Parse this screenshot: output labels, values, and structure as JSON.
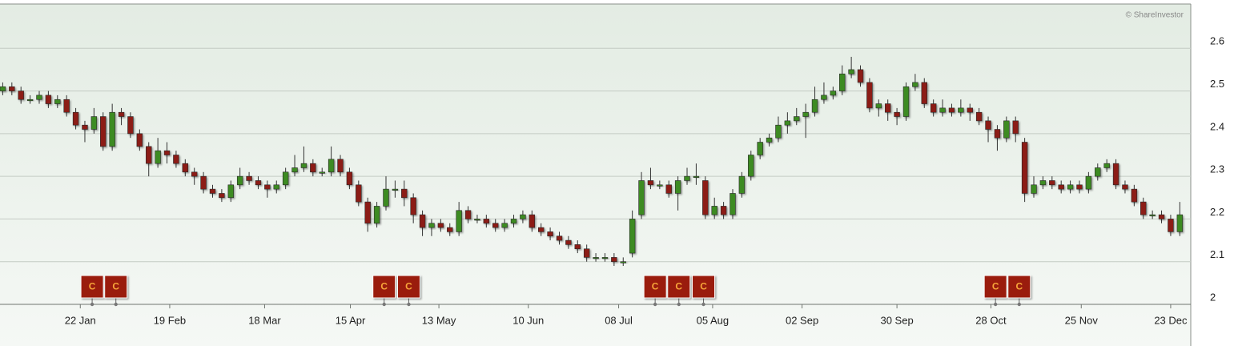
{
  "chart_data": {
    "type": "candlestick",
    "credit": "© ShareInvestor",
    "up_color": "#3d8b22",
    "down_color": "#8c1c16",
    "grid": true,
    "xlim": [
      -0.3,
      130.2
    ],
    "ylim": [
      2,
      2.7
    ],
    "yticks": [
      2,
      2.1,
      2.2,
      2.3,
      2.4,
      2.5,
      2.6
    ],
    "xticks": [
      {
        "value": 8.5,
        "label": "22 Jan"
      },
      {
        "value": 18.3,
        "label": "19 Feb"
      },
      {
        "value": 28.7,
        "label": "18 Mar"
      },
      {
        "value": 38.1,
        "label": "15 Apr"
      },
      {
        "value": 47.8,
        "label": "13 May"
      },
      {
        "value": 57.6,
        "label": "10 Jun"
      },
      {
        "value": 67.5,
        "label": "08 Jul"
      },
      {
        "value": 77.8,
        "label": "05 Aug"
      },
      {
        "value": 87.6,
        "label": "02 Sep"
      },
      {
        "value": 98,
        "label": "30 Sep"
      },
      {
        "value": 108.3,
        "label": "28 Oct"
      },
      {
        "value": 118.2,
        "label": "25 Nov"
      },
      {
        "value": 128,
        "label": "23 Dec"
      }
    ],
    "open": [
      2.5,
      2.51,
      2.5,
      2.48,
      2.48,
      2.49,
      2.47,
      2.48,
      2.45,
      2.42,
      2.41,
      2.44,
      2.37,
      2.45,
      2.44,
      2.4,
      2.37,
      2.33,
      2.36,
      2.35,
      2.33,
      2.31,
      2.3,
      2.27,
      2.26,
      2.25,
      2.28,
      2.3,
      2.29,
      2.28,
      2.27,
      2.28,
      2.31,
      2.32,
      2.33,
      2.31,
      2.31,
      2.34,
      2.31,
      2.28,
      2.24,
      2.19,
      2.23,
      2.27,
      2.27,
      2.25,
      2.21,
      2.18,
      2.19,
      2.18,
      2.17,
      2.22,
      2.2,
      2.2,
      2.19,
      2.18,
      2.19,
      2.2,
      2.21,
      2.18,
      2.17,
      2.16,
      2.15,
      2.14,
      2.13,
      2.11,
      2.11,
      2.11,
      2.1,
      2.12,
      2.21,
      2.29,
      2.28,
      2.28,
      2.26,
      2.29,
      2.3,
      2.29,
      2.21,
      2.23,
      2.21,
      2.26,
      2.3,
      2.35,
      2.38,
      2.39,
      2.42,
      2.43,
      2.44,
      2.45,
      2.48,
      2.49,
      2.5,
      2.54,
      2.55,
      2.52,
      2.46,
      2.47,
      2.45,
      2.44,
      2.51,
      2.52,
      2.47,
      2.45,
      2.46,
      2.45,
      2.46,
      2.45,
      2.43,
      2.41,
      2.39,
      2.43,
      2.38,
      2.26,
      2.28,
      2.29,
      2.28,
      2.27,
      2.28,
      2.27,
      2.3,
      2.32,
      2.33,
      2.28,
      2.27,
      2.24,
      2.21,
      2.21,
      2.2,
      2.17
    ],
    "high": [
      2.52,
      2.52,
      2.51,
      2.49,
      2.5,
      2.5,
      2.49,
      2.49,
      2.46,
      2.43,
      2.46,
      2.45,
      2.47,
      2.46,
      2.45,
      2.41,
      2.38,
      2.39,
      2.38,
      2.36,
      2.34,
      2.32,
      2.31,
      2.28,
      2.27,
      2.29,
      2.32,
      2.31,
      2.3,
      2.29,
      2.29,
      2.32,
      2.35,
      2.37,
      2.34,
      2.32,
      2.37,
      2.35,
      2.32,
      2.29,
      2.25,
      2.24,
      2.3,
      2.29,
      2.29,
      2.26,
      2.22,
      2.2,
      2.2,
      2.19,
      2.24,
      2.23,
      2.21,
      2.21,
      2.2,
      2.2,
      2.21,
      2.22,
      2.22,
      2.19,
      2.18,
      2.17,
      2.16,
      2.15,
      2.14,
      2.12,
      2.12,
      2.12,
      2.11,
      2.22,
      2.31,
      2.32,
      2.29,
      2.29,
      2.3,
      2.32,
      2.33,
      2.3,
      2.25,
      2.24,
      2.27,
      2.31,
      2.36,
      2.39,
      2.4,
      2.44,
      2.45,
      2.46,
      2.47,
      2.51,
      2.52,
      2.51,
      2.56,
      2.58,
      2.56,
      2.53,
      2.48,
      2.48,
      2.46,
      2.52,
      2.54,
      2.53,
      2.48,
      2.48,
      2.47,
      2.48,
      2.47,
      2.46,
      2.44,
      2.42,
      2.44,
      2.44,
      2.39,
      2.3,
      2.3,
      2.3,
      2.29,
      2.29,
      2.29,
      2.31,
      2.33,
      2.34,
      2.34,
      2.29,
      2.28,
      2.25,
      2.22,
      2.22,
      2.21,
      2.24
    ],
    "low": [
      2.49,
      2.49,
      2.47,
      2.47,
      2.47,
      2.46,
      2.46,
      2.44,
      2.41,
      2.38,
      2.4,
      2.36,
      2.36,
      2.42,
      2.39,
      2.36,
      2.3,
      2.32,
      2.33,
      2.32,
      2.3,
      2.28,
      2.26,
      2.25,
      2.24,
      2.24,
      2.27,
      2.28,
      2.27,
      2.25,
      2.26,
      2.27,
      2.3,
      2.31,
      2.3,
      2.3,
      2.3,
      2.3,
      2.27,
      2.23,
      2.17,
      2.18,
      2.22,
      2.25,
      2.23,
      2.19,
      2.16,
      2.16,
      2.17,
      2.16,
      2.16,
      2.19,
      2.19,
      2.18,
      2.17,
      2.17,
      2.18,
      2.19,
      2.17,
      2.16,
      2.15,
      2.14,
      2.13,
      2.12,
      2.1,
      2.1,
      2.1,
      2.09,
      2.09,
      2.11,
      2.2,
      2.27,
      2.27,
      2.25,
      2.22,
      2.28,
      2.28,
      2.2,
      2.2,
      2.2,
      2.2,
      2.25,
      2.29,
      2.34,
      2.37,
      2.38,
      2.4,
      2.42,
      2.39,
      2.44,
      2.47,
      2.48,
      2.49,
      2.53,
      2.51,
      2.45,
      2.44,
      2.43,
      2.42,
      2.43,
      2.5,
      2.46,
      2.44,
      2.44,
      2.44,
      2.44,
      2.43,
      2.42,
      2.38,
      2.36,
      2.38,
      2.38,
      2.24,
      2.25,
      2.27,
      2.27,
      2.26,
      2.26,
      2.26,
      2.26,
      2.29,
      2.31,
      2.27,
      2.26,
      2.23,
      2.2,
      2.2,
      2.19,
      2.16,
      2.16
    ],
    "close": [
      2.51,
      2.5,
      2.48,
      2.48,
      2.49,
      2.47,
      2.48,
      2.45,
      2.42,
      2.41,
      2.44,
      2.37,
      2.45,
      2.44,
      2.4,
      2.37,
      2.33,
      2.36,
      2.35,
      2.33,
      2.31,
      2.3,
      2.27,
      2.26,
      2.25,
      2.28,
      2.3,
      2.29,
      2.28,
      2.27,
      2.28,
      2.31,
      2.32,
      2.33,
      2.31,
      2.31,
      2.34,
      2.31,
      2.28,
      2.24,
      2.19,
      2.23,
      2.27,
      2.27,
      2.25,
      2.21,
      2.18,
      2.19,
      2.18,
      2.17,
      2.22,
      2.2,
      2.2,
      2.19,
      2.18,
      2.19,
      2.2,
      2.21,
      2.18,
      2.17,
      2.16,
      2.15,
      2.14,
      2.13,
      2.11,
      2.11,
      2.11,
      2.1,
      2.1,
      2.2,
      2.29,
      2.28,
      2.28,
      2.26,
      2.29,
      2.3,
      2.3,
      2.21,
      2.23,
      2.21,
      2.26,
      2.3,
      2.35,
      2.38,
      2.39,
      2.42,
      2.43,
      2.44,
      2.45,
      2.48,
      2.49,
      2.5,
      2.54,
      2.55,
      2.52,
      2.46,
      2.47,
      2.45,
      2.44,
      2.51,
      2.52,
      2.47,
      2.45,
      2.46,
      2.45,
      2.46,
      2.45,
      2.43,
      2.41,
      2.39,
      2.43,
      2.4,
      2.26,
      2.28,
      2.29,
      2.28,
      2.27,
      2.28,
      2.27,
      2.3,
      2.32,
      2.33,
      2.28,
      2.27,
      2.24,
      2.21,
      2.21,
      2.2,
      2.17,
      2.21
    ],
    "events": [
      {
        "x": 9.8,
        "label": "C"
      },
      {
        "x": 12.4,
        "label": "C"
      },
      {
        "x": 41.8,
        "label": "C"
      },
      {
        "x": 44.5,
        "label": "C"
      },
      {
        "x": 71.5,
        "label": "C"
      },
      {
        "x": 74.1,
        "label": "C"
      },
      {
        "x": 76.8,
        "label": "C"
      },
      {
        "x": 108.8,
        "label": "C"
      },
      {
        "x": 111.4,
        "label": "C"
      }
    ]
  }
}
